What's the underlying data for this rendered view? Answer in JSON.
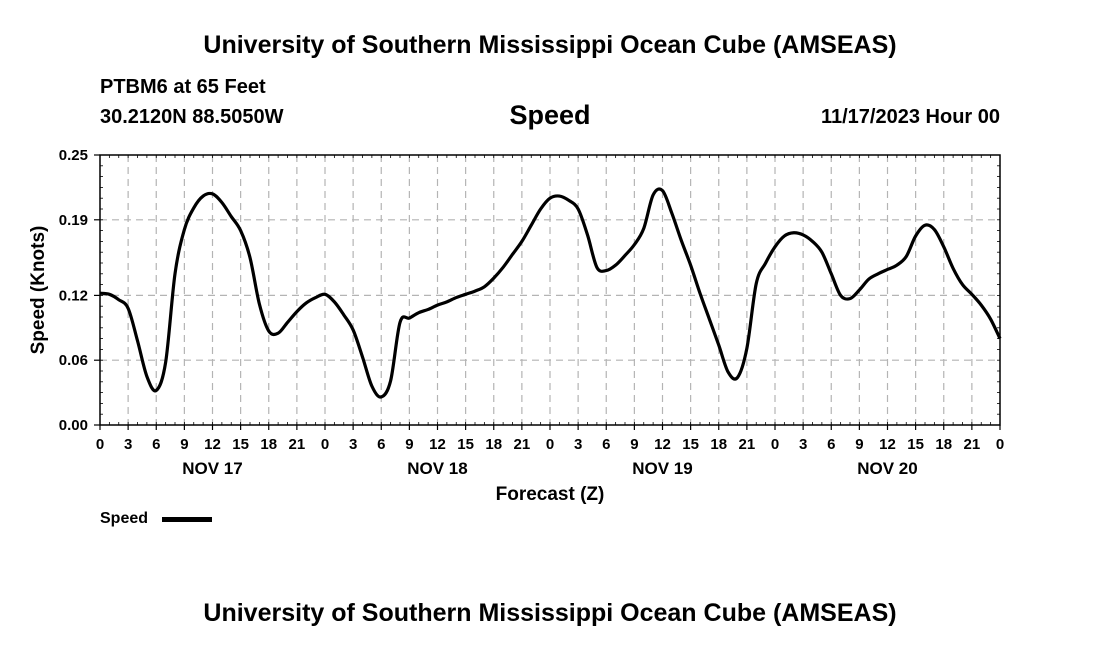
{
  "header": {
    "title": "University of Southern Mississippi Ocean Cube (AMSEAS)",
    "station": "PTBM6 at 65 Feet",
    "coords": "30.2120N  88.5050W",
    "chart_title": "Speed",
    "datetime": "11/17/2023 Hour 00"
  },
  "footer": {
    "title": "University of Southern Mississippi Ocean Cube (AMSEAS)"
  },
  "legend": {
    "label": "Speed"
  },
  "colors": {
    "series": "#000000",
    "grid": "#b4b4b4"
  },
  "chart_data": {
    "type": "line",
    "title": "Speed",
    "xlabel": "Forecast (Z)",
    "ylabel": "Speed (Knots)",
    "xlim": [
      0,
      96
    ],
    "ylim": [
      0,
      0.25
    ],
    "yticks": [
      0.0,
      0.06,
      0.12,
      0.19,
      0.25
    ],
    "ytick_labels": [
      "0.00",
      "0.06",
      "0.12",
      "0.19",
      "0.25"
    ],
    "xticks": [
      0,
      3,
      6,
      9,
      12,
      15,
      18,
      21,
      24,
      27,
      30,
      33,
      36,
      39,
      42,
      45,
      48,
      51,
      54,
      57,
      60,
      63,
      66,
      69,
      72,
      75,
      78,
      81,
      84,
      87,
      90,
      93,
      96
    ],
    "xtick_labels": [
      "0",
      "3",
      "6",
      "9",
      "12",
      "15",
      "18",
      "21",
      "0",
      "3",
      "6",
      "9",
      "12",
      "15",
      "18",
      "21",
      "0",
      "3",
      "6",
      "9",
      "12",
      "15",
      "18",
      "21",
      "0",
      "3",
      "6",
      "9",
      "12",
      "15",
      "18",
      "21",
      "0"
    ],
    "day_labels": [
      {
        "hour": 12,
        "label": "NOV 17"
      },
      {
        "hour": 36,
        "label": "NOV 18"
      },
      {
        "hour": 60,
        "label": "NOV 19"
      },
      {
        "hour": 84,
        "label": "NOV 20"
      }
    ],
    "grid": true,
    "legend_position": "bottom-left",
    "series": [
      {
        "name": "Speed",
        "x": [
          0,
          1,
          2,
          3,
          4,
          5,
          6,
          7,
          8,
          9,
          10,
          11,
          12,
          13,
          14,
          15,
          16,
          17,
          18,
          19,
          20,
          21,
          22,
          23,
          24,
          25,
          26,
          27,
          28,
          29,
          30,
          31,
          32,
          33,
          34,
          35,
          36,
          37,
          38,
          39,
          40,
          41,
          42,
          43,
          44,
          45,
          46,
          47,
          48,
          49,
          50,
          51,
          52,
          53,
          54,
          55,
          56,
          57,
          58,
          59,
          60,
          61,
          62,
          63,
          64,
          65,
          66,
          67,
          68,
          69,
          70,
          71,
          72,
          73,
          74,
          75,
          76,
          77,
          78,
          79,
          80,
          81,
          82,
          83,
          84,
          85,
          86,
          87,
          88,
          89,
          90,
          91,
          92,
          93,
          94,
          95,
          96
        ],
        "values": [
          0.122,
          0.121,
          0.116,
          0.108,
          0.078,
          0.045,
          0.032,
          0.058,
          0.14,
          0.181,
          0.201,
          0.212,
          0.214,
          0.206,
          0.193,
          0.18,
          0.155,
          0.112,
          0.087,
          0.085,
          0.095,
          0.105,
          0.113,
          0.118,
          0.121,
          0.114,
          0.102,
          0.088,
          0.063,
          0.036,
          0.026,
          0.041,
          0.095,
          0.099,
          0.104,
          0.107,
          0.111,
          0.114,
          0.118,
          0.121,
          0.124,
          0.128,
          0.136,
          0.146,
          0.158,
          0.17,
          0.185,
          0.2,
          0.21,
          0.212,
          0.208,
          0.2,
          0.176,
          0.146,
          0.143,
          0.148,
          0.157,
          0.167,
          0.182,
          0.213,
          0.217,
          0.196,
          0.171,
          0.148,
          0.122,
          0.098,
          0.074,
          0.049,
          0.044,
          0.071,
          0.131,
          0.15,
          0.165,
          0.175,
          0.178,
          0.176,
          0.17,
          0.16,
          0.14,
          0.12,
          0.117,
          0.125,
          0.135,
          0.14,
          0.144,
          0.148,
          0.156,
          0.175,
          0.185,
          0.181,
          0.165,
          0.145,
          0.13,
          0.121,
          0.111,
          0.098,
          0.08
        ]
      }
    ]
  }
}
